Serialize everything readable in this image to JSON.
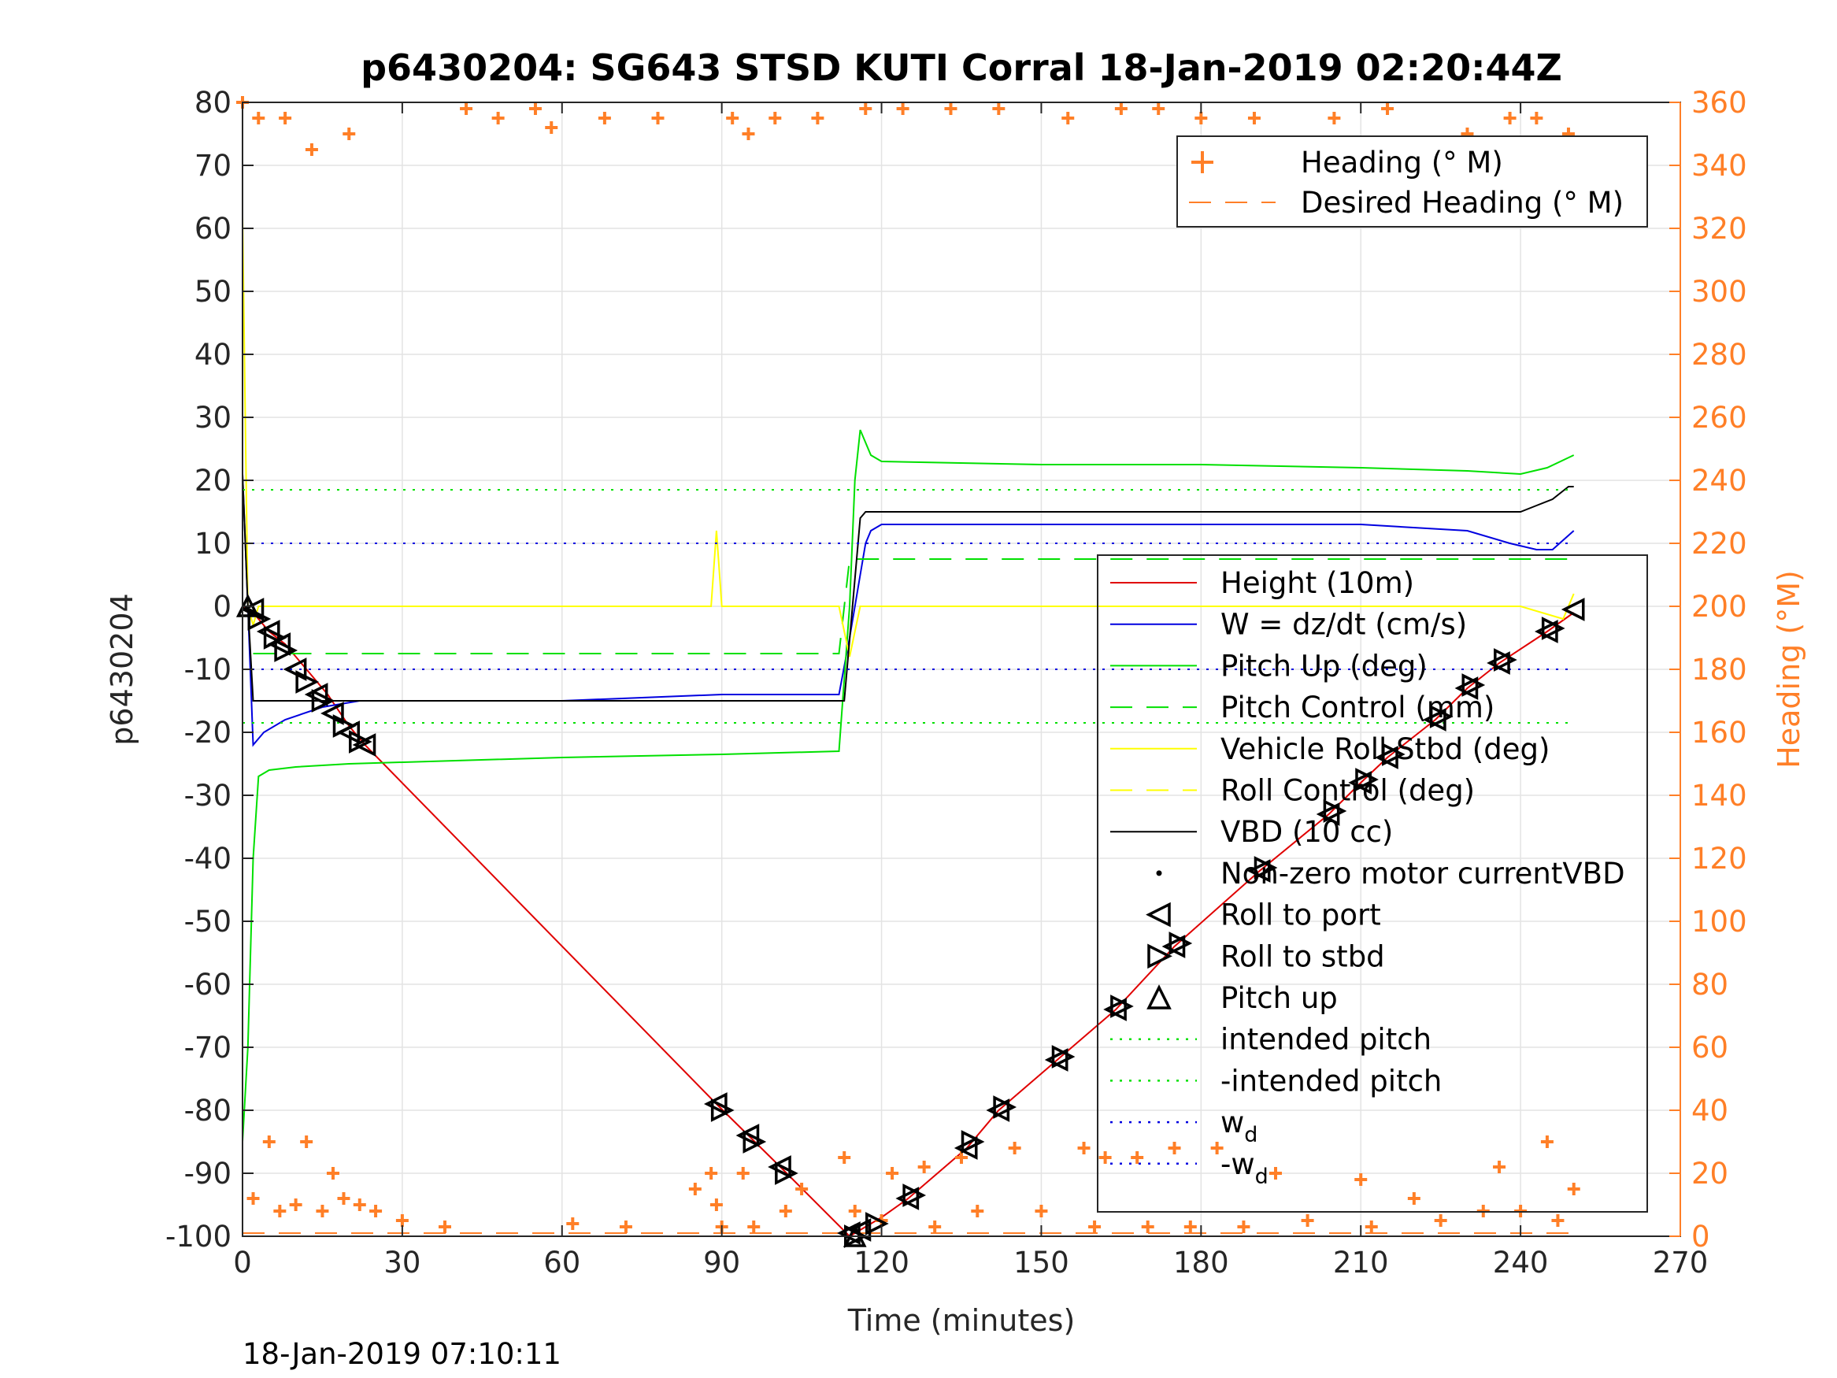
{
  "footer_timestamp": "18-Jan-2019 07:10:11",
  "chart_data": {
    "type": "line",
    "title": "p6430204: SG643 STSD KUTI Corral 18-Jan-2019 02:20:44Z",
    "xlabel": "Time (minutes)",
    "ylabel_left": "p6430204",
    "ylabel_right": "Heading (°M)",
    "xlim": [
      0,
      270
    ],
    "ylim_left": [
      -100,
      80
    ],
    "ylim_right": [
      0,
      360
    ],
    "x_ticks": [
      0,
      30,
      60,
      90,
      120,
      150,
      180,
      210,
      240,
      270
    ],
    "y_ticks_left": [
      -100,
      -90,
      -80,
      -70,
      -60,
      -50,
      -40,
      -30,
      -20,
      -10,
      0,
      10,
      20,
      30,
      40,
      50,
      60,
      70,
      80
    ],
    "y_ticks_right": [
      0,
      20,
      40,
      60,
      80,
      100,
      120,
      140,
      160,
      180,
      200,
      220,
      240,
      260,
      280,
      300,
      320,
      340,
      360
    ],
    "grid": true,
    "colors": {
      "heading": "#ff7f27",
      "height": "#e00000",
      "w": "#0000e0",
      "pitch_up": "#00e000",
      "roll": "#ffff00",
      "vbd": "#000000"
    },
    "legend_top": {
      "placement": "top-right",
      "entries": [
        "Heading (° M)",
        "Desired Heading (° M)"
      ]
    },
    "legend_main": {
      "placement": "center-right",
      "entries": [
        {
          "label": "Height (10m)",
          "style": "line",
          "color": "#e00000"
        },
        {
          "label": "W = dz/dt (cm/s)",
          "style": "line",
          "color": "#0000e0"
        },
        {
          "label": "Pitch Up (deg)",
          "style": "line",
          "color": "#00e000"
        },
        {
          "label": "Pitch Control (mm)",
          "style": "dash",
          "color": "#00e000"
        },
        {
          "label": "Vehicle Roll Stbd (deg)",
          "style": "line",
          "color": "#ffff00"
        },
        {
          "label": "Roll Control (deg)",
          "style": "dash",
          "color": "#ffff00"
        },
        {
          "label": "VBD (10 cc)",
          "style": "line",
          "color": "#000000"
        },
        {
          "label": "Non-zero motor currentVBD",
          "style": "dot",
          "color": "#000000"
        },
        {
          "label": "Roll to port",
          "style": "tri-left",
          "color": "#000000"
        },
        {
          "label": "Roll to stbd",
          "style": "tri-right",
          "color": "#000000"
        },
        {
          "label": "Pitch up",
          "style": "tri-up",
          "color": "#000000"
        },
        {
          "label": "intended pitch",
          "style": "dotted",
          "color": "#00e000"
        },
        {
          "label": "-intended pitch",
          "style": "dotted",
          "color": "#00e000"
        },
        {
          "label": "w",
          "sub": "d",
          "style": "dotted",
          "color": "#0000e0"
        },
        {
          "label": "-w",
          "sub": "d",
          "style": "dotted",
          "color": "#0000e0"
        }
      ]
    },
    "series": [
      {
        "name": "Height (10m)",
        "axis": "left",
        "x": [
          0,
          2,
          5,
          8,
          12,
          16,
          20,
          23,
          89,
          95,
          101,
          114,
          116,
          118,
          120,
          125,
          136,
          142,
          153,
          164,
          175,
          191,
          204,
          210,
          215,
          224,
          230,
          236,
          245,
          250
        ],
        "y": [
          0,
          -1,
          -4,
          -6,
          -10,
          -14,
          -19,
          -22,
          -79,
          -84,
          -89,
          -100,
          -99,
          -98,
          -97,
          -94,
          -86,
          -80,
          -72,
          -64,
          -54,
          -42,
          -33,
          -28,
          -24,
          -18,
          -13,
          -9,
          -4,
          -1
        ]
      },
      {
        "name": "W = dz/dt (cm/s)",
        "axis": "left",
        "x": [
          0,
          1,
          2,
          4,
          8,
          15,
          22,
          30,
          60,
          90,
          112,
          114,
          116,
          117,
          118,
          120,
          130,
          150,
          180,
          210,
          230,
          238,
          243,
          246,
          250
        ],
        "y": [
          21,
          0,
          -22,
          -20,
          -18,
          -16,
          -15,
          -15,
          -15,
          -14,
          -14,
          -5,
          5,
          10,
          12,
          13,
          13,
          13,
          13,
          13,
          12,
          10,
          9,
          9,
          12
        ]
      },
      {
        "name": "Pitch Up (deg)",
        "axis": "left",
        "x": [
          0,
          1,
          2,
          3,
          5,
          10,
          20,
          40,
          60,
          90,
          112,
          114,
          115,
          116,
          118,
          120,
          150,
          180,
          210,
          230,
          240,
          245,
          250
        ],
        "y": [
          -85,
          -70,
          -40,
          -27,
          -26,
          -25.5,
          -25,
          -24.5,
          -24,
          -23.5,
          -23,
          0,
          20,
          28,
          24,
          23,
          22.5,
          22.5,
          22,
          21.5,
          21,
          22,
          24
        ]
      },
      {
        "name": "Pitch Control (mm)",
        "axis": "left",
        "style": "dash",
        "x": [
          2,
          112,
          114,
          250
        ],
        "y": [
          -7.5,
          -7.5,
          7.5,
          7.5
        ]
      },
      {
        "name": "Vehicle Roll Stbd (deg)",
        "axis": "left",
        "x": [
          0,
          1,
          2,
          3,
          5,
          10,
          40,
          88,
          89,
          90,
          100,
          112,
          114,
          116,
          120,
          160,
          200,
          240,
          248,
          250
        ],
        "y": [
          62,
          0,
          -3,
          0,
          0,
          0,
          0,
          0,
          12,
          0,
          0,
          0,
          -8,
          0,
          0,
          0,
          0,
          0,
          -2,
          2
        ]
      },
      {
        "name": "VBD (10 cc)",
        "axis": "left",
        "x": [
          0,
          1,
          2,
          112,
          113,
          116,
          117,
          118,
          240,
          243,
          246,
          249,
          250
        ],
        "y": [
          21,
          0,
          -15,
          -15,
          -15,
          14,
          15,
          15,
          15,
          16,
          17,
          19,
          19
        ]
      },
      {
        "name": "intended pitch",
        "axis": "left",
        "style": "dotted",
        "x": [
          0,
          250
        ],
        "y": [
          18.5,
          18.5
        ]
      },
      {
        "name": "-intended pitch",
        "axis": "left",
        "style": "dotted",
        "x": [
          0,
          250
        ],
        "y": [
          -18.5,
          -18.5
        ]
      },
      {
        "name": "w_d",
        "axis": "left",
        "style": "dotted",
        "x": [
          0,
          250
        ],
        "y": [
          10,
          10
        ]
      },
      {
        "name": "-w_d",
        "axis": "left",
        "style": "dotted",
        "x": [
          0,
          250
        ],
        "y": [
          -10,
          -10
        ]
      },
      {
        "name": "Heading (° M)",
        "axis": "right",
        "style": "plus",
        "x": [
          0,
          2,
          3,
          5,
          7,
          8,
          10,
          12,
          13,
          15,
          17,
          19,
          20,
          22,
          25,
          30,
          38,
          42,
          48,
          55,
          58,
          62,
          68,
          72,
          78,
          85,
          88,
          89,
          90,
          92,
          94,
          95,
          96,
          100,
          102,
          105,
          108,
          113,
          115,
          117,
          120,
          122,
          124,
          128,
          130,
          133,
          135,
          138,
          142,
          145,
          150,
          155,
          158,
          160,
          162,
          165,
          168,
          170,
          172,
          175,
          178,
          180,
          183,
          188,
          190,
          194,
          200,
          205,
          210,
          212,
          215,
          220,
          225,
          230,
          233,
          236,
          238,
          240,
          243,
          245,
          247,
          249,
          250
        ],
        "y": [
          360,
          12,
          355,
          30,
          8,
          355,
          10,
          30,
          345,
          8,
          20,
          12,
          350,
          10,
          8,
          5,
          3,
          358,
          355,
          358,
          352,
          4,
          355,
          3,
          355,
          15,
          20,
          10,
          3,
          355,
          20,
          350,
          3,
          355,
          8,
          15,
          355,
          25,
          8,
          358,
          5,
          20,
          358,
          22,
          3,
          358,
          25,
          8,
          358,
          28,
          8,
          355,
          28,
          3,
          25,
          358,
          25,
          3,
          358,
          28,
          3,
          355,
          28,
          3,
          355,
          20,
          5,
          355,
          18,
          3,
          358,
          12,
          5,
          350,
          8,
          22,
          355,
          8,
          355,
          30,
          5,
          350,
          15
        ]
      },
      {
        "name": "Desired Heading (° M)",
        "axis": "right",
        "style": "dash",
        "x": [
          0,
          250
        ],
        "y": [
          1,
          1
        ]
      }
    ],
    "markers": {
      "roll_to_port": {
        "x": [
          2,
          5,
          7,
          10,
          14,
          17,
          20,
          23,
          89,
          95,
          101,
          114,
          116,
          125,
          136,
          142,
          153,
          164,
          175,
          191,
          204,
          210,
          215,
          224,
          230,
          236,
          245,
          250
        ],
        "y": [
          -0.5,
          -4,
          -6,
          -10,
          -14,
          -17,
          -20,
          -22,
          -79,
          -84,
          -89,
          -99.5,
          -99,
          -94,
          -86,
          -80,
          -72,
          -64,
          -54,
          -42,
          -33,
          -28,
          -24,
          -18,
          -13,
          -9,
          -4,
          -0.5
        ]
      },
      "roll_to_stbd": {
        "x": [
          3,
          6,
          8,
          12,
          15,
          19,
          22,
          90,
          96,
          102,
          115,
          119,
          126,
          137,
          143,
          154,
          165,
          176,
          192,
          205,
          211,
          216,
          225,
          231,
          237,
          246
        ],
        "y": [
          -2,
          -5,
          -7,
          -12,
          -15,
          -19,
          -21.5,
          -80,
          -85,
          -90,
          -100,
          -98,
          -93.5,
          -85,
          -79.5,
          -71.5,
          -63.5,
          -53.5,
          -41.5,
          -32.5,
          -27.5,
          -23.5,
          -17.5,
          -12.5,
          -8.5,
          -3.5
        ]
      },
      "pitch_up": {
        "x": [
          1,
          115
        ],
        "y": [
          0,
          -100
        ]
      }
    }
  }
}
